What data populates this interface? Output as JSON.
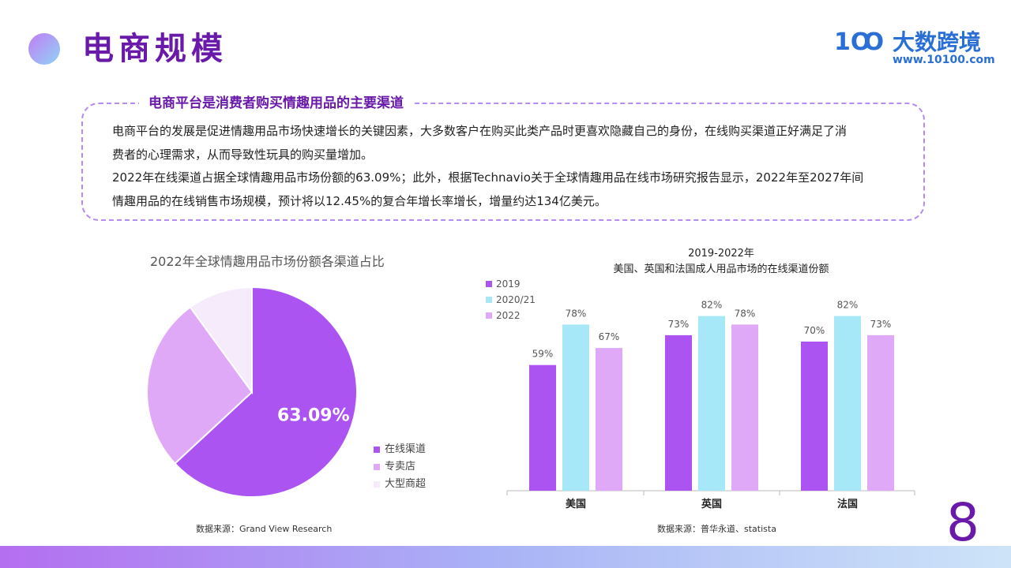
{
  "header": {
    "title": "电商规模",
    "logo_mark": "1Ꝏ",
    "logo_name": "大数跨境",
    "logo_url": "www.10100.com"
  },
  "callout": {
    "heading": "电商平台是消费者购买情趣用品的主要渠道",
    "line1": "电商平台的发展是促进情趣用品市场快速增长的关键因素，大多数客户在购买此类产品时更喜欢隐藏自己的身份，在线购买渠道正好满足了消",
    "line2": "费者的心理需求，从而导致性玩具的购买量增加。",
    "line3": "2022年在线渠道占据全球情趣用品市场份额的63.09%；此外，根据Technavio关于全球情趣用品在线市场研究报告显示，2022年至2027年间",
    "line4": "情趣用品的在线销售市场规模，预计将以12.45%的复合年增长率增长，增量约达134亿美元。"
  },
  "page_number": "8",
  "colors": {
    "title": "#6a1aa8",
    "online": "#ab54f2",
    "specialty": "#e0a9f7",
    "mall": "#f6ebfb",
    "series_2019": "#ab54f2",
    "series_2020": "#a6e8f8",
    "series_2022": "#e0a9f7"
  },
  "chart_data": [
    {
      "type": "pie",
      "title": "2022年全球情趣用品市场份额各渠道占比",
      "slices": [
        {
          "name": "在线渠道",
          "value": 63.09,
          "label": "63.09%"
        },
        {
          "name": "专卖店",
          "value": 26.91
        },
        {
          "name": "大型商超",
          "value": 10.0
        }
      ],
      "legend": "right",
      "source": "数据来源：Grand View Research"
    },
    {
      "type": "bar",
      "title_line1": "2019-2022年",
      "title_line2": "美国、英国和法国成人用品市场的在线渠道份额",
      "categories": [
        "美国",
        "英国",
        "法国"
      ],
      "series": [
        {
          "name": "2019",
          "values": [
            59,
            73,
            70
          ]
        },
        {
          "name": "2020/21",
          "values": [
            78,
            82,
            82
          ]
        },
        {
          "name": "2022",
          "values": [
            67,
            78,
            73
          ]
        }
      ],
      "unit": "%",
      "ylim": [
        0,
        100
      ],
      "grid": false,
      "legend": "top-left",
      "source": "数据来源：普华永道、statista"
    }
  ]
}
